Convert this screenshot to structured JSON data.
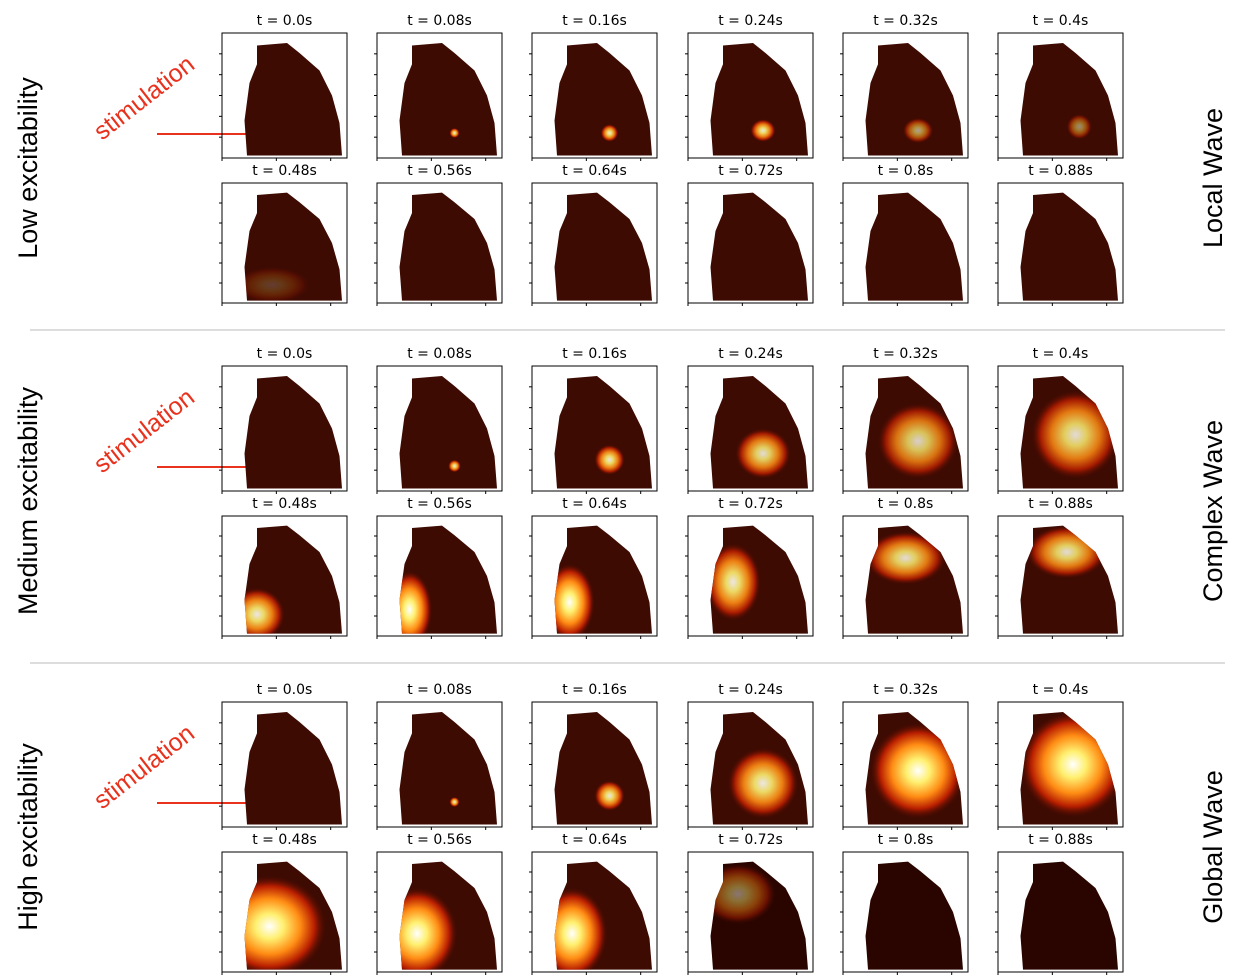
{
  "rows": [
    {
      "label": "Low excitability",
      "wave": "Local Wave",
      "stimulation": "stimulation",
      "times": [
        "t = 0.0s",
        "t = 0.08s",
        "t = 0.16s",
        "t = 0.24s",
        "t = 0.32s",
        "t = 0.4s",
        "t = 0.48s",
        "t = 0.56s",
        "t = 0.64s",
        "t = 0.72s",
        "t = 0.8s",
        "t = 0.88s"
      ]
    },
    {
      "label": "Medium excitability",
      "wave": "Complex Wave",
      "stimulation": "stimulation",
      "times": [
        "t = 0.0s",
        "t = 0.08s",
        "t = 0.16s",
        "t = 0.24s",
        "t = 0.32s",
        "t = 0.4s",
        "t = 0.48s",
        "t = 0.56s",
        "t = 0.64s",
        "t = 0.72s",
        "t = 0.8s",
        "t = 0.88s"
      ]
    },
    {
      "label": "High excitability",
      "wave": "Global Wave",
      "stimulation": "stimulation",
      "times": [
        "t = 0.0s",
        "t = 0.08s",
        "t = 0.16s",
        "t = 0.24s",
        "t = 0.32s",
        "t = 0.4s",
        "t = 0.48s",
        "t = 0.56s",
        "t = 0.64s",
        "t = 0.72s",
        "t = 0.8s",
        "t = 0.88s"
      ]
    }
  ]
}
